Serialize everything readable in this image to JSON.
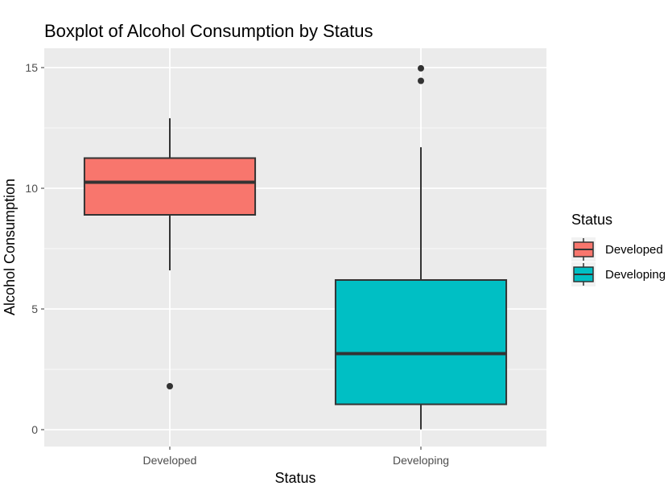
{
  "chart_data": {
    "type": "boxplot",
    "title": "Boxplot of Alcohol Consumption by Status",
    "xlabel": "Status",
    "ylabel": "Alcohol Consumption",
    "ylim": [
      -0.7,
      15.8
    ],
    "y_ticks": [
      0,
      5,
      10,
      15
    ],
    "y_tick_labels": [
      "0",
      "5",
      "10",
      "15"
    ],
    "grid": true,
    "legend": {
      "title": "Status",
      "placement": "right",
      "entries": [
        "Developed",
        "Developing"
      ]
    },
    "categories": [
      "Developed",
      "Developing"
    ],
    "series": [
      {
        "name": "Developed",
        "color": "#F8766D",
        "min": 6.6,
        "q1": 8.9,
        "median": 10.25,
        "q3": 11.25,
        "max": 12.9,
        "outliers": [
          1.8
        ]
      },
      {
        "name": "Developing",
        "color": "#00BFC4",
        "min": 0.01,
        "q1": 1.05,
        "median": 3.15,
        "q3": 6.2,
        "max": 11.7,
        "outliers": [
          14.45,
          14.97
        ]
      }
    ]
  }
}
